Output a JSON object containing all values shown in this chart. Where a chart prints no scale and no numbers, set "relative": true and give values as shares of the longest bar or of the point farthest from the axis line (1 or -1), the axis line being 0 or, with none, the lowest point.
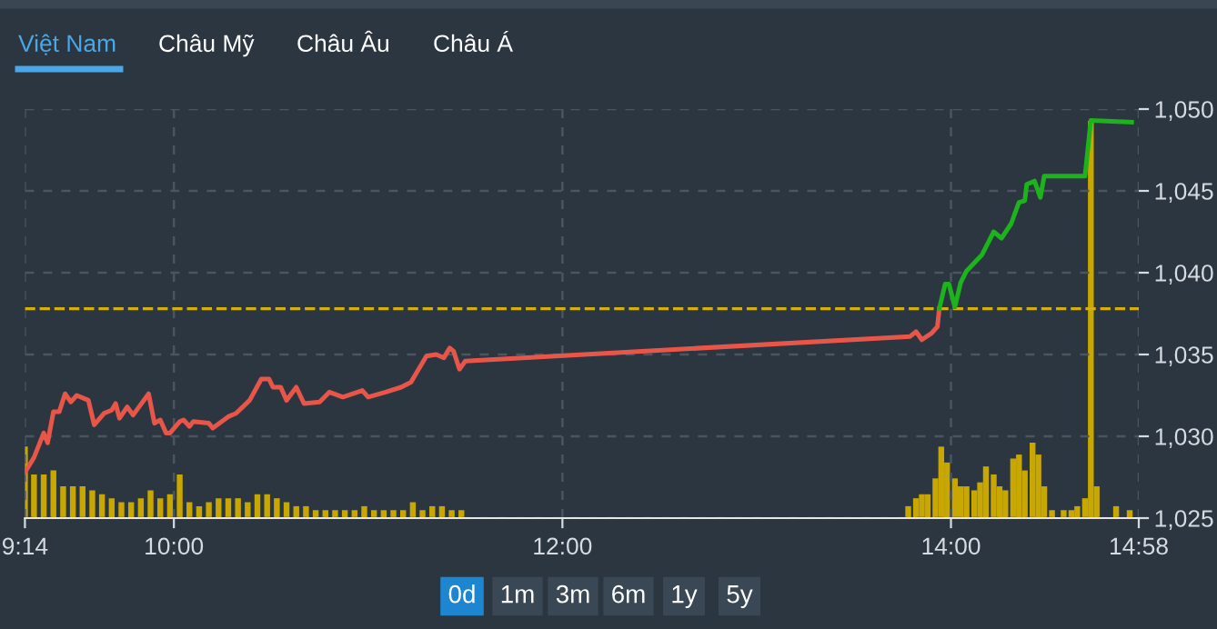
{
  "chart_data": [
    {
      "type": "line",
      "series": [
        {
          "color": "#e8564a",
          "x": [
            9.2333,
            9.28,
            9.33,
            9.35,
            9.38,
            9.41,
            9.44,
            9.47,
            9.5,
            9.56,
            9.59,
            9.64,
            9.68,
            9.7,
            9.72,
            9.76,
            9.79,
            9.87,
            9.9,
            9.93,
            9.96,
            9.98,
            10.03,
            10.05,
            10.08,
            10.1,
            10.18,
            10.2,
            10.28,
            10.32,
            10.39,
            10.45,
            10.49,
            10.51,
            10.55,
            10.58,
            10.63,
            10.67,
            10.75,
            10.8,
            10.87,
            10.97,
            11.0,
            11.09,
            11.17,
            11.22,
            11.25,
            11.3,
            11.35,
            11.39,
            11.42,
            11.44,
            11.47,
            11.5,
            13.79,
            13.82,
            13.85,
            13.9,
            13.93,
            13.94
          ],
          "values": [
            1027.8,
            1028.7,
            1030.2,
            1029.6,
            1031.5,
            1031.5,
            1032.6,
            1032.1,
            1032.5,
            1032.2,
            1030.7,
            1031.4,
            1031.6,
            1032.0,
            1031.1,
            1031.8,
            1031.3,
            1032.6,
            1030.8,
            1031.0,
            1030.2,
            1030.2,
            1030.9,
            1031.0,
            1030.6,
            1030.9,
            1030.8,
            1030.5,
            1031.2,
            1031.4,
            1032.2,
            1033.5,
            1033.5,
            1033.0,
            1033.0,
            1032.2,
            1033.0,
            1032.0,
            1032.1,
            1032.7,
            1032.4,
            1032.8,
            1032.4,
            1032.7,
            1033.0,
            1033.3,
            1033.9,
            1034.9,
            1035.0,
            1034.8,
            1035.4,
            1035.2,
            1034.1,
            1034.6,
            1036.1,
            1036.4,
            1035.9,
            1036.3,
            1036.7,
            1037.8
          ]
        },
        {
          "color": "#1db31d",
          "x": [
            13.94,
            13.97,
            13.99,
            14.02,
            14.05,
            14.08,
            14.12,
            14.16,
            14.22,
            14.26,
            14.31,
            14.35,
            14.38,
            14.39,
            14.43,
            14.46,
            14.48,
            14.69,
            14.72,
            14.93
          ],
          "values": [
            1037.8,
            1039.3,
            1039.3,
            1037.9,
            1039.4,
            1040.1,
            1040.6,
            1041.1,
            1042.5,
            1042.1,
            1043.0,
            1044.3,
            1044.4,
            1045.4,
            1045.6,
            1044.6,
            1045.9,
            1045.9,
            1049.3,
            1049.2
          ]
        }
      ],
      "xlim": [
        9.2333,
        14.9667
      ],
      "xticks": [
        {
          "value": 9.2333,
          "label": "9:14"
        },
        {
          "value": 10,
          "label": "10:00"
        },
        {
          "value": 12,
          "label": "12:00"
        },
        {
          "value": 14,
          "label": "14:00"
        },
        {
          "value": 14.9667,
          "label": "14:58"
        }
      ],
      "ylim": [
        1025,
        1050
      ],
      "yticks": [
        {
          "value": 1025,
          "label": "1,025"
        },
        {
          "value": 1030,
          "label": "1,030"
        },
        {
          "value": 1035,
          "label": "1,035"
        },
        {
          "value": 1040,
          "label": "1,040"
        },
        {
          "value": 1045,
          "label": "1,045"
        },
        {
          "value": 1050,
          "label": "1,050"
        }
      ],
      "grid": true,
      "ref_lines": [
        {
          "axis": "y",
          "value": 1037.8,
          "color": "#d4b00c",
          "line_style": "dashed"
        }
      ],
      "annotations": [
        "Việt Nam",
        "Châu Mỹ",
        "Châu Âu",
        "Châu Á",
        "0d",
        "1m",
        "3m",
        "6m",
        "1y",
        "5y"
      ]
    },
    {
      "type": "bar",
      "relative": true,
      "color": "#c8a800",
      "tick_labels": false,
      "xlim": [
        9.2333,
        14.9667
      ],
      "x": [
        9.2333,
        9.28,
        9.33,
        9.38,
        9.43,
        9.48,
        9.53,
        9.58,
        9.63,
        9.68,
        9.73,
        9.78,
        9.83,
        9.88,
        9.93,
        9.98,
        10.03,
        10.08,
        10.13,
        10.18,
        10.23,
        10.28,
        10.33,
        10.38,
        10.43,
        10.48,
        10.53,
        10.58,
        10.63,
        10.68,
        10.73,
        10.78,
        10.83,
        10.88,
        10.93,
        10.98,
        11.03,
        11.08,
        11.13,
        11.18,
        11.23,
        11.28,
        11.33,
        11.38,
        11.43,
        11.48,
        13.78,
        13.82,
        13.85,
        13.88,
        13.92,
        13.95,
        13.98,
        14.02,
        14.05,
        14.08,
        14.12,
        14.15,
        14.18,
        14.22,
        14.25,
        14.28,
        14.32,
        14.35,
        14.38,
        14.42,
        14.45,
        14.48,
        14.52,
        14.58,
        14.62,
        14.65,
        14.69,
        14.72,
        14.75,
        14.85,
        14.92
      ],
      "values": [
        0.18,
        0.11,
        0.11,
        0.12,
        0.08,
        0.08,
        0.08,
        0.07,
        0.06,
        0.05,
        0.04,
        0.04,
        0.05,
        0.07,
        0.05,
        0.06,
        0.11,
        0.04,
        0.03,
        0.04,
        0.05,
        0.05,
        0.05,
        0.04,
        0.06,
        0.06,
        0.05,
        0.04,
        0.03,
        0.03,
        0.02,
        0.02,
        0.02,
        0.02,
        0.02,
        0.03,
        0.02,
        0.02,
        0.02,
        0.02,
        0.04,
        0.02,
        0.03,
        0.03,
        0.02,
        0.02,
        0.03,
        0.05,
        0.06,
        0.06,
        0.1,
        0.18,
        0.14,
        0.1,
        0.08,
        0.08,
        0.07,
        0.09,
        0.13,
        0.11,
        0.08,
        0.07,
        0.15,
        0.16,
        0.12,
        0.19,
        0.16,
        0.08,
        0.02,
        0.02,
        0.02,
        0.03,
        0.05,
        1.0,
        0.08,
        0.03,
        0.02
      ]
    }
  ]
}
